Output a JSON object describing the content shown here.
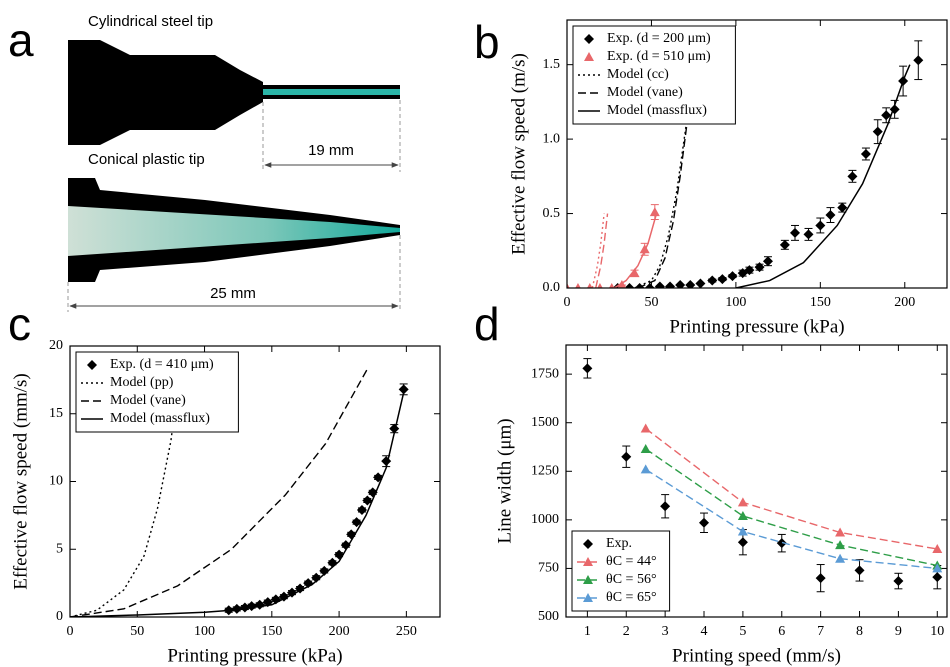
{
  "panel_a": {
    "panel": "a",
    "top_title": "Cylindrical steel tip",
    "top_length": "19 mm",
    "bottom_title": "Conical plastic tip",
    "bottom_length": "25 mm"
  },
  "chart_data": [
    {
      "type": "line",
      "panel": "b",
      "x_label": "Printing pressure (kPa)",
      "y_label": "Effective flow speed (m/s)",
      "xlim": [
        0,
        225
      ],
      "ylim": [
        0,
        1.8
      ],
      "xticks": [
        0,
        50,
        100,
        150,
        200
      ],
      "yticks": [
        {
          "value": 0,
          "label": "0.0"
        },
        0.5,
        {
          "value": 1,
          "label": "1.0"
        },
        1.5
      ],
      "legend": "upper left",
      "series": [
        {
          "name": "Exp. (d = 200 μm)",
          "color": "#000000",
          "marker": "diamond",
          "x": [
            30,
            37,
            43,
            49,
            55,
            61,
            67,
            73,
            79,
            86,
            92,
            98,
            104,
            108,
            114,
            119,
            129,
            135,
            143,
            150,
            156,
            163,
            169,
            177,
            184,
            189,
            194,
            199,
            208
          ],
          "values": [
            0,
            0,
            0,
            0,
            0.01,
            0.01,
            0.02,
            0.02,
            0.03,
            0.05,
            0.06,
            0.08,
            0.1,
            0.12,
            0.14,
            0.18,
            0.29,
            0.37,
            0.36,
            0.42,
            0.49,
            0.54,
            0.75,
            0.9,
            1.05,
            1.16,
            1.2,
            1.39,
            1.53
          ],
          "errors": [
            0,
            0,
            0,
            0,
            0,
            0,
            0,
            0,
            0,
            0.01,
            0.01,
            0.01,
            0.02,
            0.02,
            0.02,
            0.03,
            0.03,
            0.05,
            0.04,
            0.05,
            0.05,
            0.03,
            0.04,
            0.04,
            0.08,
            0.05,
            0.06,
            0.1,
            0.13
          ]
        },
        {
          "name": "Exp. (d = 510 μm)",
          "color": "#e8676a",
          "marker": "triangle",
          "x": [
            0,
            6.5,
            13.5,
            19.5,
            26.5,
            32.5,
            40,
            46,
            52
          ],
          "values": [
            0,
            0,
            0,
            0,
            0,
            0.02,
            0.1,
            0.26,
            0.51
          ],
          "errors": [
            0,
            0,
            0,
            0,
            0,
            0,
            0.02,
            0.04,
            0.05
          ]
        },
        {
          "name": "Model (cc)",
          "color": "#000000",
          "style": "dotted",
          "x": [
            40,
            50,
            55,
            60,
            65,
            70,
            73
          ],
          "values": [
            0,
            0.05,
            0.15,
            0.35,
            0.65,
            1.05,
            1.3
          ]
        },
        {
          "name": "Model (vane)",
          "color": "#000000",
          "style": "dashed",
          "x": [
            42,
            52,
            58,
            63,
            67,
            71,
            74
          ],
          "values": [
            0,
            0.05,
            0.2,
            0.45,
            0.75,
            1.1,
            1.35
          ]
        },
        {
          "name": "Model (massflux)",
          "color": "#000000",
          "style": "solid",
          "x": [
            100,
            120,
            140,
            160,
            175,
            190,
            200,
            203
          ],
          "values": [
            0,
            0.05,
            0.17,
            0.42,
            0.7,
            1.1,
            1.42,
            1.5
          ]
        },
        {
          "color": "#e8676a",
          "style": "dotted",
          "x": [
            15,
            18,
            20,
            22
          ],
          "values": [
            0,
            0.15,
            0.3,
            0.5
          ]
        },
        {
          "color": "#e8676a",
          "style": "dashed",
          "x": [
            17,
            20,
            22,
            24
          ],
          "values": [
            0,
            0.15,
            0.3,
            0.5
          ]
        },
        {
          "color": "#e8676a",
          "style": "solid",
          "x": [
            28,
            35,
            42,
            48,
            53
          ],
          "values": [
            0,
            0.05,
            0.15,
            0.3,
            0.5
          ]
        }
      ]
    },
    {
      "type": "line",
      "panel": "c",
      "x_label": "Printing pressure (kPa)",
      "y_label": "Effective flow speed (mm/s)",
      "xlim": [
        0,
        275
      ],
      "ylim": [
        0,
        20
      ],
      "xticks": [
        0,
        50,
        100,
        150,
        200,
        250
      ],
      "yticks": [
        0,
        5,
        10,
        15,
        20
      ],
      "legend": "upper left",
      "series": [
        {
          "name": "Exp. (d = 410 μm)",
          "color": "#000000",
          "marker": "diamond",
          "x": [
            118,
            124,
            130,
            135,
            141,
            147,
            153,
            159,
            165,
            171,
            177,
            183,
            189,
            195,
            200,
            205,
            209,
            213,
            217,
            221,
            225,
            229,
            235,
            241,
            248
          ],
          "values": [
            0.5,
            0.6,
            0.7,
            0.8,
            0.9,
            1.1,
            1.3,
            1.5,
            1.8,
            2.1,
            2.5,
            2.9,
            3.4,
            4.0,
            4.6,
            5.3,
            6.1,
            7.0,
            7.9,
            8.6,
            9.2,
            10.3,
            11.5,
            13.9,
            16.8
          ],
          "errors": [
            0.15,
            0.15,
            0.15,
            0.15,
            0.15,
            0.15,
            0.15,
            0.15,
            0.15,
            0.15,
            0.15,
            0.15,
            0.15,
            0.15,
            0.15,
            0.15,
            0.15,
            0.15,
            0.15,
            0.15,
            0.15,
            0.15,
            0.4,
            0.3,
            0.4
          ]
        },
        {
          "name": "Model (pp)",
          "color": "#000000",
          "style": "dotted",
          "x": [
            0,
            20,
            40,
            55,
            65,
            75,
            82
          ],
          "values": [
            0,
            0.5,
            2,
            4.5,
            8,
            13,
            18.5
          ]
        },
        {
          "name": "Model (vane)",
          "color": "#000000",
          "style": "dashed",
          "x": [
            0,
            40,
            80,
            120,
            160,
            190,
            221
          ],
          "values": [
            0,
            0.6,
            2.3,
            5,
            9,
            12.8,
            18.3
          ]
        },
        {
          "name": "Model (massflux)",
          "color": "#000000",
          "style": "solid",
          "x": [
            0,
            50,
            100,
            120,
            150,
            180,
            200,
            220,
            235,
            249
          ],
          "values": [
            0,
            0.15,
            0.35,
            0.5,
            0.9,
            2.4,
            4.1,
            7.5,
            11,
            17
          ]
        }
      ]
    },
    {
      "type": "line",
      "panel": "d",
      "x_label": "Printing speed (mm/s)",
      "y_label": "Line width (μm)",
      "xlim": [
        0.45,
        10.25
      ],
      "ylim": [
        500,
        1900
      ],
      "xticks": [
        1,
        2,
        3,
        4,
        5,
        6,
        7,
        8,
        9,
        10
      ],
      "yticks": [
        500,
        750,
        1000,
        1250,
        1500,
        1750
      ],
      "legend": "lower left",
      "series": [
        {
          "name": "Exp.",
          "color": "#000000",
          "marker": "diamond",
          "x": [
            1,
            2,
            3,
            4,
            5,
            6,
            7,
            8,
            9,
            10
          ],
          "values": [
            1780,
            1325,
            1070,
            985,
            885,
            880,
            700,
            740,
            685,
            705
          ],
          "errors": [
            50,
            55,
            60,
            50,
            65,
            45,
            70,
            55,
            40,
            60
          ]
        },
        {
          "name": "θC = 44°",
          "color": "#e8676a",
          "style": "dashed",
          "marker": "triangle",
          "x": [
            2.5,
            5,
            7.5,
            10
          ],
          "values": [
            1470,
            1090,
            935,
            850
          ]
        },
        {
          "name": "θC = 56°",
          "color": "#2e9e48",
          "style": "dashed",
          "marker": "triangle",
          "x": [
            2.5,
            5,
            7.5,
            10
          ],
          "values": [
            1365,
            1020,
            870,
            765
          ]
        },
        {
          "name": "θC = 65°",
          "color": "#5b9bd5",
          "style": "dashed",
          "marker": "triangle",
          "x": [
            2.5,
            5,
            7.5,
            10
          ],
          "values": [
            1260,
            940,
            800,
            750
          ]
        }
      ]
    }
  ]
}
